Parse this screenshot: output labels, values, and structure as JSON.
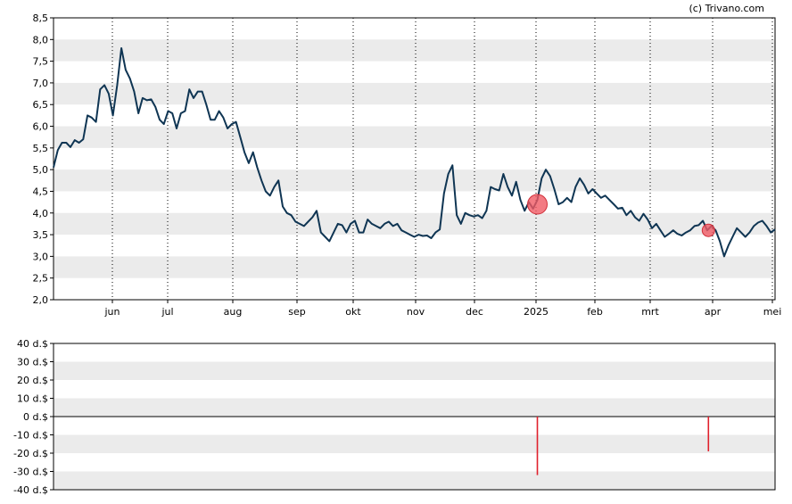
{
  "credit": "(c) Trivano.com",
  "colors": {
    "line": "#0f3553",
    "band": "#ebebeb",
    "marker": "#f05a64",
    "bar": "#e0202c",
    "axis": "#000000",
    "grid": "#000000"
  },
  "chart_data": [
    {
      "type": "line",
      "title": "",
      "xlabel": "",
      "ylabel": "",
      "ylim": [
        2.0,
        8.5
      ],
      "y_ticks": [
        "2,0",
        "2,5",
        "3,0",
        "3,5",
        "4,0",
        "4,5",
        "5,0",
        "5,5",
        "6,0",
        "6,5",
        "7,0",
        "7,5",
        "8,0",
        "8,5"
      ],
      "x_ticks": [
        "jun",
        "jul",
        "aug",
        "sep",
        "okt",
        "nov",
        "dec",
        "2025",
        "feb",
        "mrt",
        "apr",
        "mei"
      ],
      "grid": "vertical dotted at month ticks, alternating horizontal bands",
      "series": [
        {
          "points": [
            [
              0,
              5.05
            ],
            [
              1,
              5.45
            ],
            [
              2,
              5.62
            ],
            [
              3,
              5.62
            ],
            [
              4,
              5.52
            ],
            [
              5,
              5.68
            ],
            [
              6,
              5.62
            ],
            [
              7,
              5.7
            ],
            [
              8,
              6.25
            ],
            [
              9,
              6.2
            ],
            [
              10,
              6.1
            ],
            [
              11,
              6.85
            ],
            [
              12,
              6.95
            ],
            [
              13,
              6.75
            ],
            [
              14,
              6.25
            ],
            [
              15,
              6.95
            ],
            [
              16,
              7.8
            ],
            [
              17,
              7.3
            ],
            [
              18,
              7.1
            ],
            [
              19,
              6.8
            ],
            [
              20,
              6.3
            ],
            [
              21,
              6.65
            ],
            [
              22,
              6.6
            ],
            [
              23,
              6.62
            ],
            [
              24,
              6.45
            ],
            [
              25,
              6.15
            ],
            [
              26,
              6.05
            ],
            [
              27,
              6.35
            ],
            [
              28,
              6.3
            ],
            [
              29,
              5.95
            ],
            [
              30,
              6.3
            ],
            [
              31,
              6.35
            ],
            [
              32,
              6.85
            ],
            [
              33,
              6.65
            ],
            [
              34,
              6.8
            ],
            [
              35,
              6.8
            ],
            [
              36,
              6.5
            ],
            [
              37,
              6.15
            ],
            [
              38,
              6.15
            ],
            [
              39,
              6.35
            ],
            [
              40,
              6.2
            ],
            [
              41,
              5.95
            ],
            [
              42,
              6.05
            ],
            [
              43,
              6.1
            ],
            [
              44,
              5.75
            ],
            [
              45,
              5.4
            ],
            [
              46,
              5.15
            ],
            [
              47,
              5.4
            ],
            [
              48,
              5.05
            ],
            [
              49,
              4.75
            ],
            [
              50,
              4.5
            ],
            [
              51,
              4.4
            ],
            [
              52,
              4.6
            ],
            [
              53,
              4.75
            ],
            [
              54,
              4.15
            ],
            [
              55,
              4.0
            ],
            [
              56,
              3.95
            ],
            [
              57,
              3.8
            ],
            [
              58,
              3.75
            ],
            [
              59,
              3.7
            ],
            [
              60,
              3.8
            ],
            [
              61,
              3.9
            ],
            [
              62,
              4.05
            ],
            [
              63,
              3.55
            ],
            [
              64,
              3.45
            ],
            [
              65,
              3.35
            ],
            [
              66,
              3.55
            ],
            [
              67,
              3.75
            ],
            [
              68,
              3.72
            ],
            [
              69,
              3.55
            ],
            [
              70,
              3.75
            ],
            [
              71,
              3.82
            ],
            [
              72,
              3.55
            ],
            [
              73,
              3.55
            ],
            [
              74,
              3.85
            ],
            [
              75,
              3.75
            ],
            [
              76,
              3.7
            ],
            [
              77,
              3.65
            ],
            [
              78,
              3.75
            ],
            [
              79,
              3.8
            ],
            [
              80,
              3.7
            ],
            [
              81,
              3.75
            ],
            [
              82,
              3.6
            ],
            [
              83,
              3.55
            ],
            [
              84,
              3.5
            ],
            [
              85,
              3.45
            ],
            [
              86,
              3.5
            ],
            [
              87,
              3.47
            ],
            [
              88,
              3.48
            ],
            [
              89,
              3.42
            ],
            [
              90,
              3.55
            ],
            [
              91,
              3.62
            ],
            [
              92,
              4.45
            ],
            [
              93,
              4.9
            ],
            [
              94,
              5.1
            ],
            [
              95,
              3.95
            ],
            [
              96,
              3.75
            ],
            [
              97,
              4.0
            ],
            [
              98,
              3.95
            ],
            [
              99,
              3.92
            ],
            [
              100,
              3.95
            ],
            [
              101,
              3.88
            ],
            [
              102,
              4.05
            ],
            [
              103,
              4.6
            ],
            [
              104,
              4.55
            ],
            [
              105,
              4.52
            ],
            [
              106,
              4.9
            ],
            [
              107,
              4.6
            ],
            [
              108,
              4.4
            ],
            [
              109,
              4.72
            ],
            [
              110,
              4.3
            ],
            [
              111,
              4.05
            ],
            [
              112,
              4.25
            ],
            [
              113,
              4.1
            ],
            [
              114,
              4.3
            ],
            [
              115,
              4.8
            ],
            [
              116,
              5.0
            ],
            [
              117,
              4.85
            ],
            [
              118,
              4.55
            ],
            [
              119,
              4.2
            ],
            [
              120,
              4.25
            ],
            [
              121,
              4.35
            ],
            [
              122,
              4.25
            ],
            [
              123,
              4.6
            ],
            [
              124,
              4.8
            ],
            [
              125,
              4.65
            ],
            [
              126,
              4.45
            ],
            [
              127,
              4.55
            ],
            [
              128,
              4.45
            ],
            [
              129,
              4.35
            ],
            [
              130,
              4.4
            ],
            [
              131,
              4.3
            ],
            [
              132,
              4.2
            ],
            [
              133,
              4.1
            ],
            [
              134,
              4.12
            ],
            [
              135,
              3.95
            ],
            [
              136,
              4.05
            ],
            [
              137,
              3.9
            ],
            [
              138,
              3.82
            ],
            [
              139,
              3.98
            ],
            [
              140,
              3.85
            ],
            [
              141,
              3.65
            ],
            [
              142,
              3.75
            ],
            [
              143,
              3.6
            ],
            [
              144,
              3.45
            ],
            [
              145,
              3.52
            ],
            [
              146,
              3.6
            ],
            [
              147,
              3.52
            ],
            [
              148,
              3.48
            ],
            [
              149,
              3.55
            ],
            [
              150,
              3.6
            ],
            [
              151,
              3.7
            ],
            [
              152,
              3.72
            ],
            [
              153,
              3.82
            ],
            [
              154,
              3.6
            ],
            [
              155,
              3.7
            ],
            [
              156,
              3.6
            ],
            [
              157,
              3.35
            ],
            [
              158,
              3.0
            ],
            [
              159,
              3.25
            ],
            [
              160,
              3.45
            ],
            [
              161,
              3.65
            ],
            [
              162,
              3.55
            ],
            [
              163,
              3.45
            ],
            [
              164,
              3.55
            ],
            [
              165,
              3.7
            ],
            [
              166,
              3.78
            ],
            [
              167,
              3.82
            ],
            [
              168,
              3.7
            ],
            [
              169,
              3.55
            ],
            [
              170,
              3.62
            ]
          ]
        }
      ],
      "markers": [
        {
          "x": 114.0,
          "y": 4.2,
          "size": "large"
        },
        {
          "x": 154.3,
          "y": 3.6,
          "size": "small"
        }
      ]
    },
    {
      "type": "bar",
      "title": "",
      "xlabel": "",
      "ylabel": "",
      "ylim": [
        -40,
        40
      ],
      "y_ticks": [
        "40 d.$",
        "30 d.$",
        "20 d.$",
        "10 d.$",
        "0 d.$",
        "-10 d.$",
        "-20 d.$",
        "-30 d.$",
        "-40 d.$"
      ],
      "series": [
        {
          "points": [
            [
              114.0,
              -32
            ],
            [
              154.3,
              -19
            ]
          ]
        }
      ]
    }
  ]
}
